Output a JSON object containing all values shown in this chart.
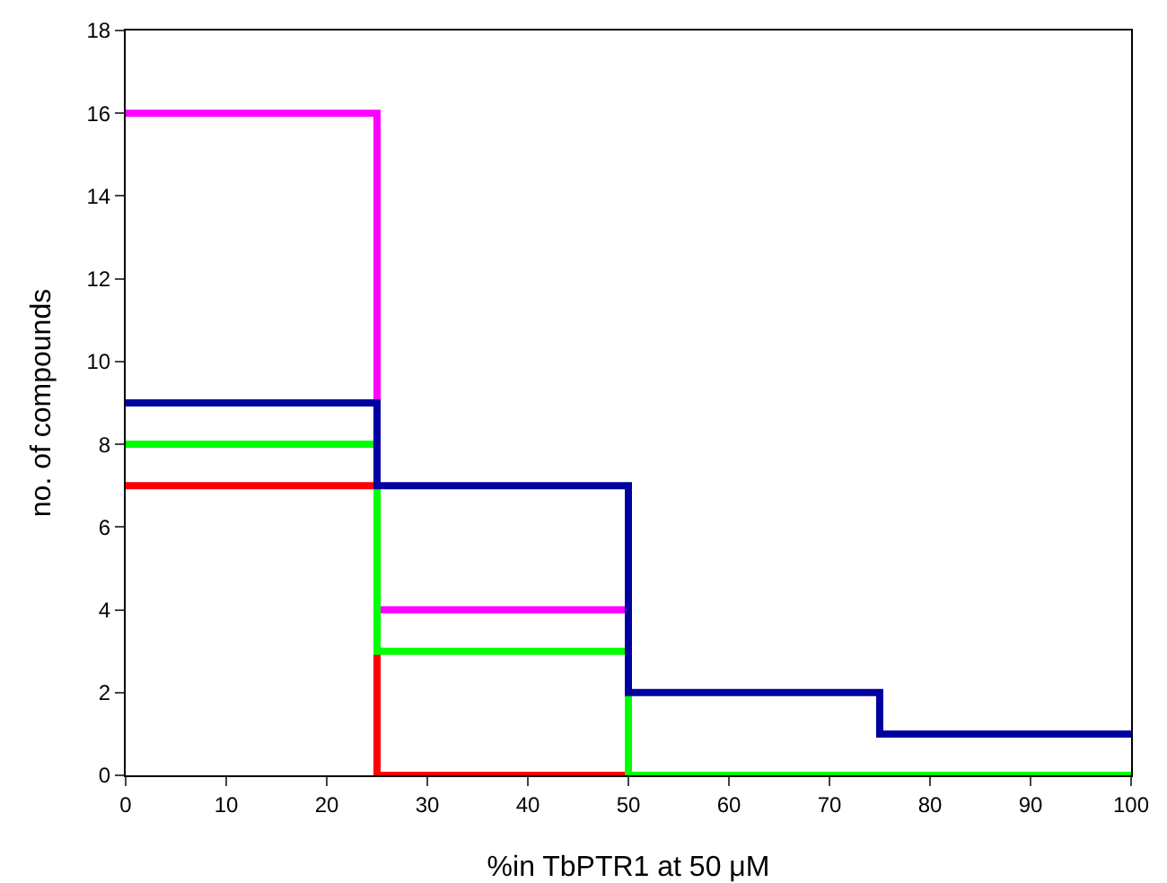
{
  "chart_data": {
    "type": "step",
    "xlabel": "%in TbPTR1 at 50 μM",
    "ylabel": "no. of compounds",
    "x": [
      0,
      25,
      50,
      75,
      100
    ],
    "series": [
      {
        "color": "#ff0000",
        "values": [
          7,
          0,
          0,
          null,
          null
        ]
      },
      {
        "color": "#ff00ff",
        "values": [
          16,
          4,
          4,
          null,
          null
        ]
      },
      {
        "color": "#00ff00",
        "values": [
          8,
          3,
          0,
          0,
          0
        ]
      },
      {
        "color": "#0000a0",
        "values": [
          9,
          7,
          2,
          1,
          1
        ]
      }
    ],
    "xlim": [
      0,
      100
    ],
    "xticks": [
      0,
      10,
      20,
      30,
      40,
      50,
      60,
      70,
      80,
      90,
      100
    ],
    "ylim": [
      0,
      18
    ],
    "yticks": [
      0,
      2,
      4,
      6,
      8,
      10,
      12,
      14,
      16,
      18
    ],
    "grid": false,
    "marker": "none",
    "line_style": "solid"
  }
}
